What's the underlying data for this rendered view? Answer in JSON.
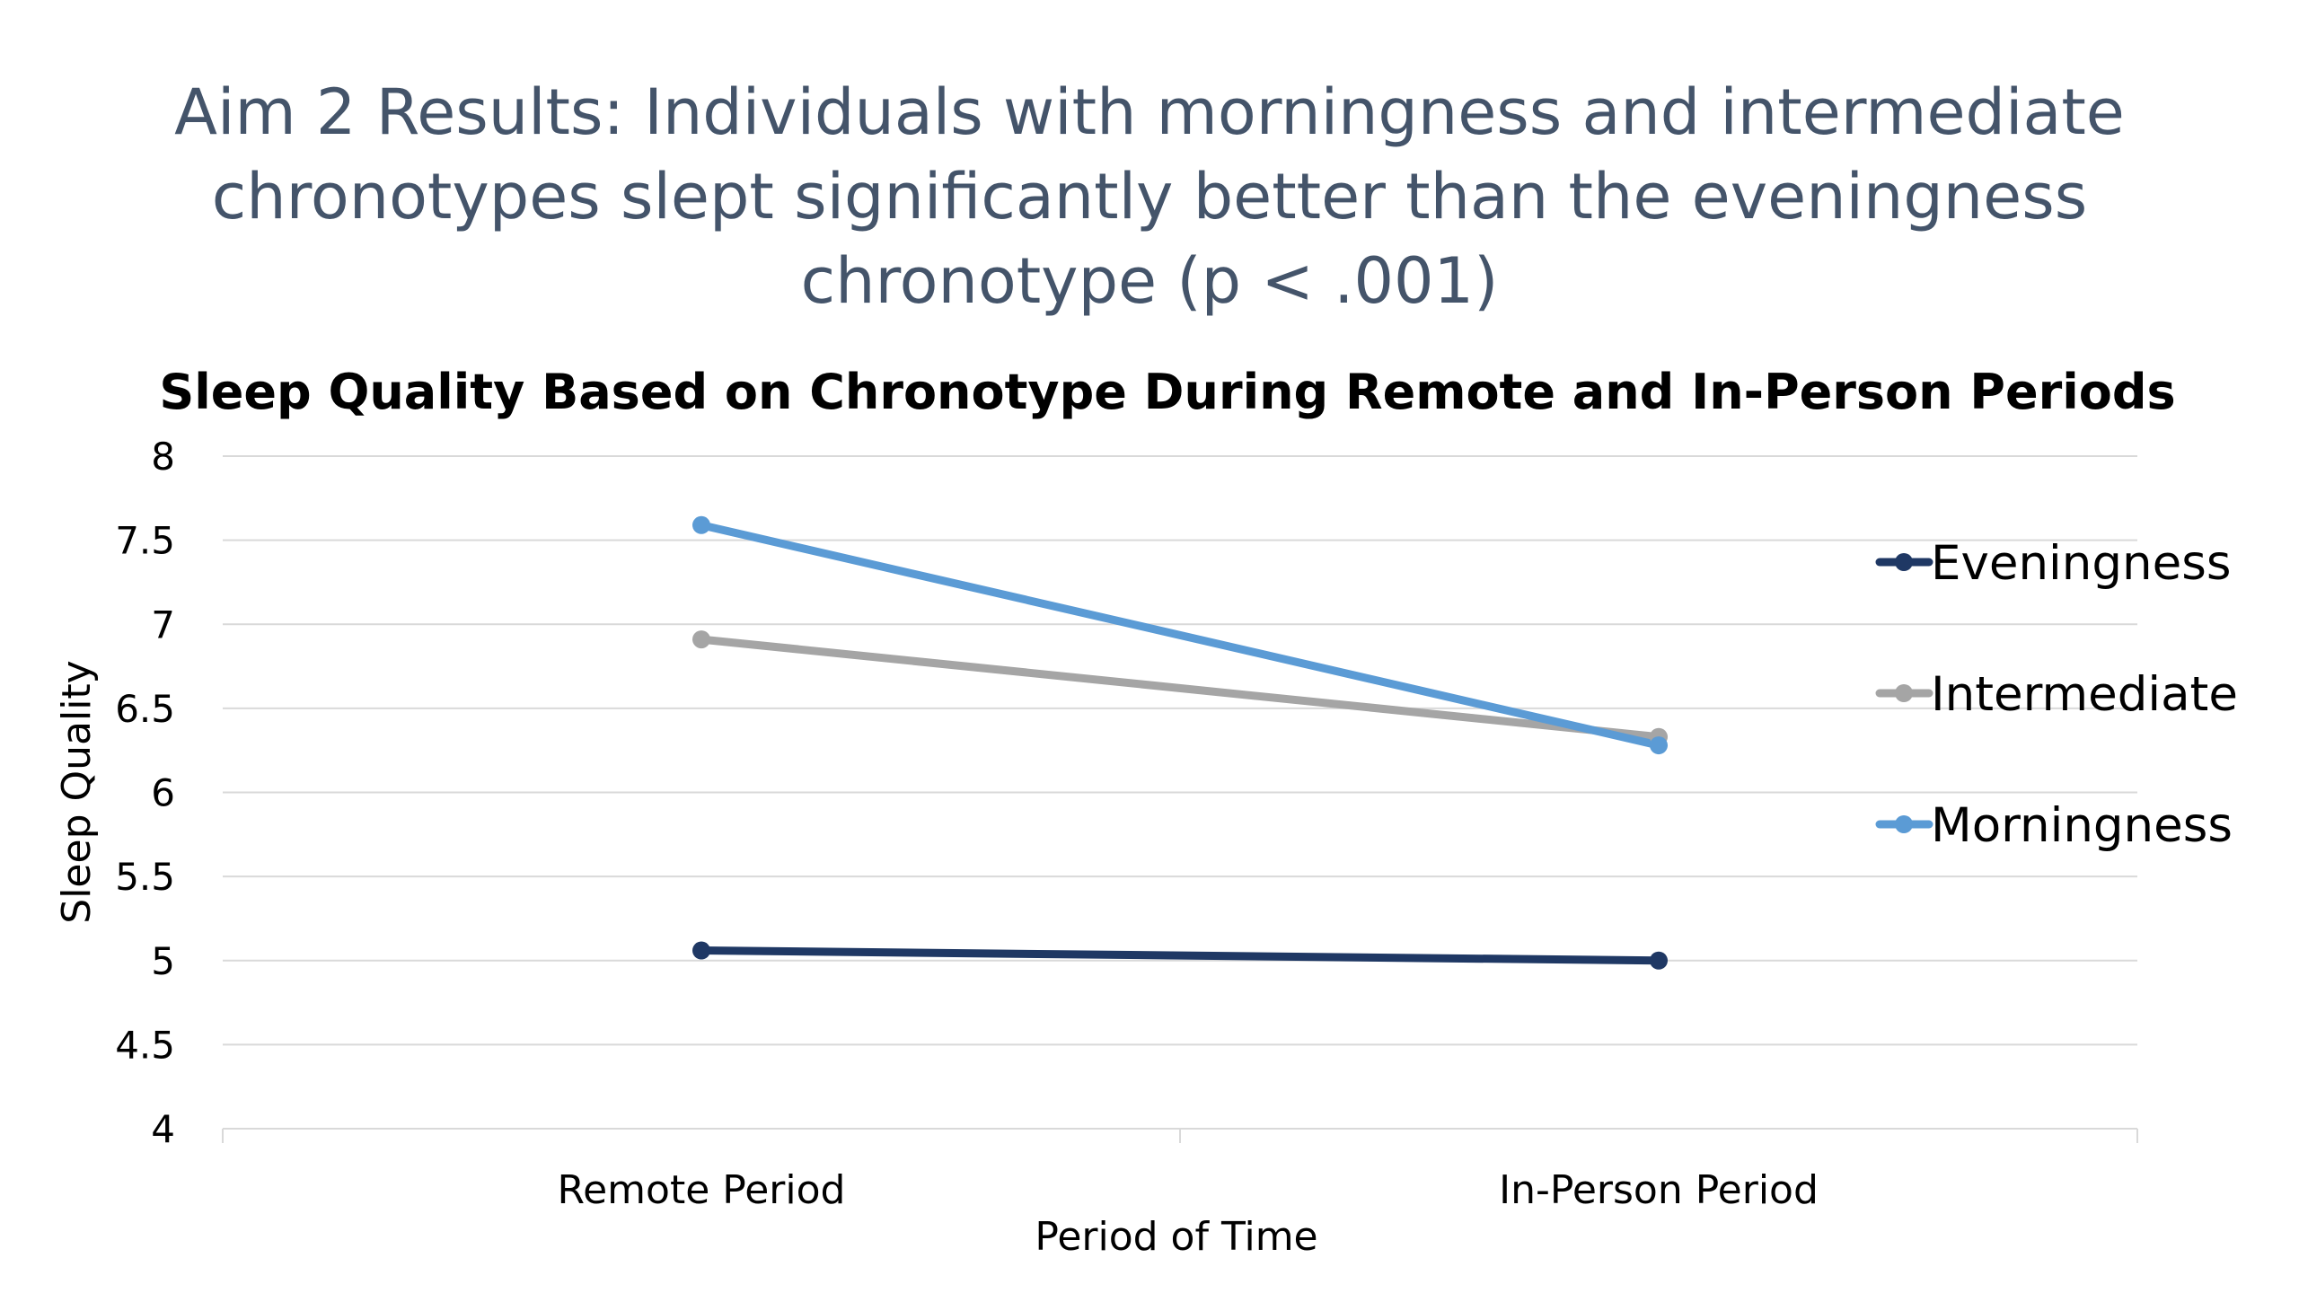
{
  "slide": {
    "title_lines": [
      "Aim 2 Results: Individuals with morningness and intermediate",
      "chronotypes slept significantly better than the eveningness",
      "chronotype (p < .001)"
    ]
  },
  "chart_data": {
    "type": "line",
    "title": "Sleep Quality Based on Chronotype During Remote and In-Person Periods",
    "xlabel": "Period of Time",
    "ylabel": "Sleep Quality",
    "categories": [
      "Remote Period",
      "In-Person Period"
    ],
    "ylim": [
      4,
      8
    ],
    "yticks": [
      4,
      4.5,
      5,
      5.5,
      6,
      6.5,
      7,
      7.5,
      8
    ],
    "ytick_labels": [
      "4",
      "4.5",
      "5",
      "5.5",
      "6",
      "6.5",
      "7",
      "7.5",
      "8"
    ],
    "grid": true,
    "legend_position": "right",
    "series": [
      {
        "name": "Eveningness",
        "values": [
          5.06,
          5.0
        ],
        "color": "#1f3864"
      },
      {
        "name": "Intermediate",
        "values": [
          6.91,
          6.33
        ],
        "color": "#a5a5a5"
      },
      {
        "name": "Morningness",
        "values": [
          7.59,
          6.28
        ],
        "color": "#5b9bd5"
      }
    ]
  }
}
